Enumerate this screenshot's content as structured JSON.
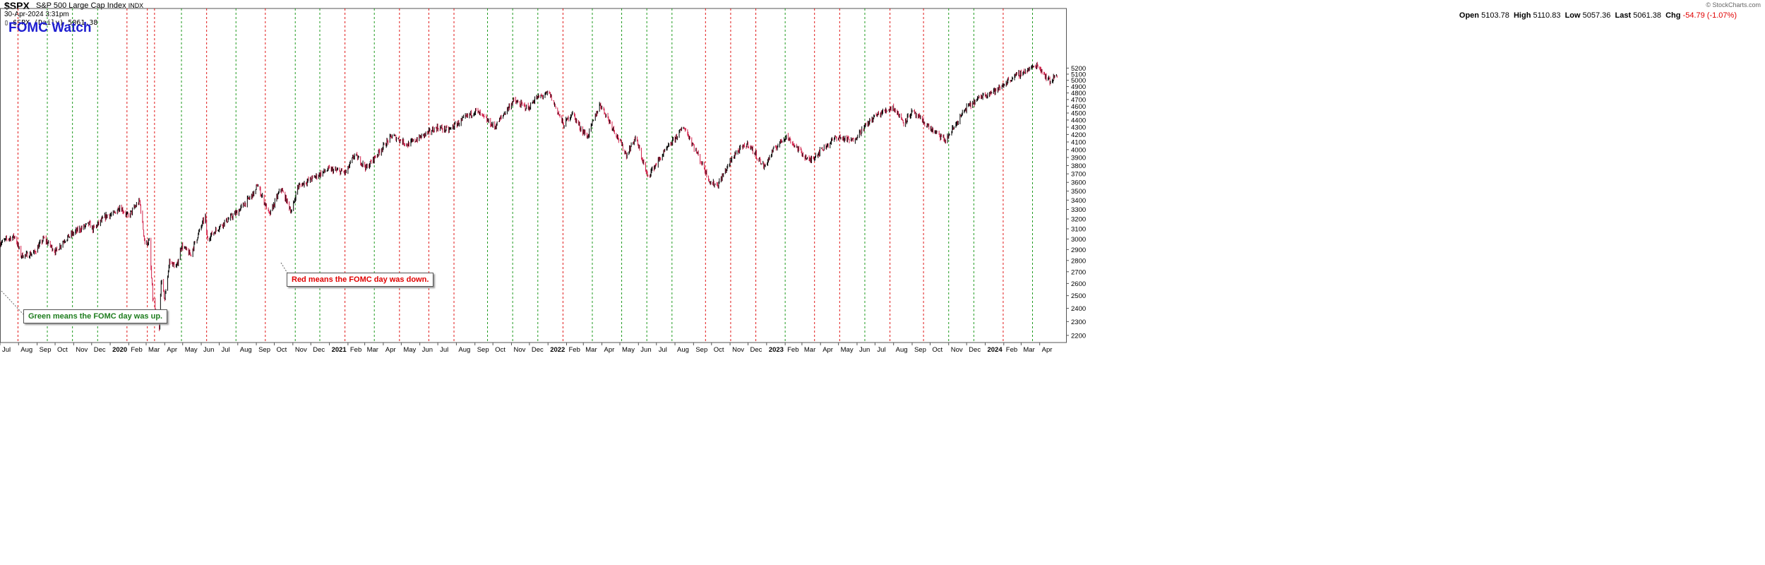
{
  "header": {
    "symbol": "$SPX",
    "description": "S&P 500 Large Cap Index",
    "exchange": "INDX",
    "timestamp": "30-Apr-2024 3:31pm",
    "legend": "▯ $SPX (Daily) 5061.38",
    "watermark": "© StockCharts.com",
    "open_label": "Open",
    "open": "5103.78",
    "high_label": "High",
    "high": "5110.83",
    "low_label": "Low",
    "low": "5057.36",
    "last_label": "Last",
    "last": "5061.38",
    "chg_label": "Chg",
    "chg": "-54.79 (-1.07%)",
    "chg_color": "#e00000"
  },
  "annotations": {
    "title": "FOMC Watch",
    "green_note": "Green means the FOMC day was up.",
    "red_note": "Red means the FOMC day was down."
  },
  "chart_data": {
    "type": "line",
    "title": "FOMC Watch",
    "scale": "log",
    "ylim": [
      2150,
      6300
    ],
    "y_ticks": [
      2200,
      2300,
      2400,
      2500,
      2600,
      2700,
      2800,
      2900,
      3000,
      3100,
      3200,
      3300,
      3400,
      3500,
      3600,
      3700,
      3800,
      3900,
      4000,
      4100,
      4200,
      4300,
      4400,
      4500,
      4600,
      4700,
      4800,
      4900,
      5000,
      5100,
      5200
    ],
    "x_range": [
      "2019-07-01",
      "2024-05-15"
    ],
    "x_ticks": [
      {
        "label": "Jul",
        "date": "2019-07-01"
      },
      {
        "label": "Aug",
        "date": "2019-08-01"
      },
      {
        "label": "Sep",
        "date": "2019-09-01"
      },
      {
        "label": "Oct",
        "date": "2019-10-01"
      },
      {
        "label": "Nov",
        "date": "2019-11-01"
      },
      {
        "label": "Dec",
        "date": "2019-12-01"
      },
      {
        "label": "2020",
        "date": "2020-01-01",
        "bold": true
      },
      {
        "label": "Feb",
        "date": "2020-02-01"
      },
      {
        "label": "Mar",
        "date": "2020-03-01"
      },
      {
        "label": "Apr",
        "date": "2020-04-01"
      },
      {
        "label": "May",
        "date": "2020-05-01"
      },
      {
        "label": "Jun",
        "date": "2020-06-01"
      },
      {
        "label": "Jul",
        "date": "2020-07-01"
      },
      {
        "label": "Aug",
        "date": "2020-08-01"
      },
      {
        "label": "Sep",
        "date": "2020-09-01"
      },
      {
        "label": "Oct",
        "date": "2020-10-01"
      },
      {
        "label": "Nov",
        "date": "2020-11-01"
      },
      {
        "label": "Dec",
        "date": "2020-12-01"
      },
      {
        "label": "2021",
        "date": "2021-01-01",
        "bold": true
      },
      {
        "label": "Feb",
        "date": "2021-02-01"
      },
      {
        "label": "Mar",
        "date": "2021-03-01"
      },
      {
        "label": "Apr",
        "date": "2021-04-01"
      },
      {
        "label": "May",
        "date": "2021-05-01"
      },
      {
        "label": "Jun",
        "date": "2021-06-01"
      },
      {
        "label": "Jul",
        "date": "2021-07-01"
      },
      {
        "label": "Aug",
        "date": "2021-08-01"
      },
      {
        "label": "Sep",
        "date": "2021-09-01"
      },
      {
        "label": "Oct",
        "date": "2021-10-01"
      },
      {
        "label": "Nov",
        "date": "2021-11-01"
      },
      {
        "label": "Dec",
        "date": "2021-12-01"
      },
      {
        "label": "2022",
        "date": "2022-01-01",
        "bold": true
      },
      {
        "label": "Feb",
        "date": "2022-02-01"
      },
      {
        "label": "Mar",
        "date": "2022-03-01"
      },
      {
        "label": "Apr",
        "date": "2022-04-01"
      },
      {
        "label": "May",
        "date": "2022-05-01"
      },
      {
        "label": "Jun",
        "date": "2022-06-01"
      },
      {
        "label": "Jul",
        "date": "2022-07-01"
      },
      {
        "label": "Aug",
        "date": "2022-08-01"
      },
      {
        "label": "Sep",
        "date": "2022-09-01"
      },
      {
        "label": "Oct",
        "date": "2022-10-01"
      },
      {
        "label": "Nov",
        "date": "2022-11-01"
      },
      {
        "label": "Dec",
        "date": "2022-12-01"
      },
      {
        "label": "2023",
        "date": "2023-01-01",
        "bold": true
      },
      {
        "label": "Feb",
        "date": "2023-02-01"
      },
      {
        "label": "Mar",
        "date": "2023-03-01"
      },
      {
        "label": "Apr",
        "date": "2023-04-01"
      },
      {
        "label": "May",
        "date": "2023-05-01"
      },
      {
        "label": "Jun",
        "date": "2023-06-01"
      },
      {
        "label": "Jul",
        "date": "2023-07-01"
      },
      {
        "label": "Aug",
        "date": "2023-08-01"
      },
      {
        "label": "Sep",
        "date": "2023-09-01"
      },
      {
        "label": "Oct",
        "date": "2023-10-01"
      },
      {
        "label": "Nov",
        "date": "2023-11-01"
      },
      {
        "label": "Dec",
        "date": "2023-12-01"
      },
      {
        "label": "2024",
        "date": "2024-01-01",
        "bold": true
      },
      {
        "label": "Feb",
        "date": "2024-02-01"
      },
      {
        "label": "Mar",
        "date": "2024-03-01"
      },
      {
        "label": "Apr",
        "date": "2024-04-01"
      }
    ],
    "fomc_days": [
      {
        "date": "2019-07-31",
        "result": "down"
      },
      {
        "date": "2019-09-18",
        "result": "up"
      },
      {
        "date": "2019-10-30",
        "result": "up"
      },
      {
        "date": "2019-12-11",
        "result": "up"
      },
      {
        "date": "2020-01-29",
        "result": "down"
      },
      {
        "date": "2020-03-03",
        "result": "down"
      },
      {
        "date": "2020-03-15",
        "result": "down"
      },
      {
        "date": "2020-04-29",
        "result": "up"
      },
      {
        "date": "2020-06-10",
        "result": "down"
      },
      {
        "date": "2020-07-29",
        "result": "up"
      },
      {
        "date": "2020-09-16",
        "result": "down"
      },
      {
        "date": "2020-11-05",
        "result": "up"
      },
      {
        "date": "2020-12-16",
        "result": "up"
      },
      {
        "date": "2021-01-27",
        "result": "down"
      },
      {
        "date": "2021-03-17",
        "result": "up"
      },
      {
        "date": "2021-04-28",
        "result": "down"
      },
      {
        "date": "2021-06-16",
        "result": "down"
      },
      {
        "date": "2021-07-28",
        "result": "down"
      },
      {
        "date": "2021-09-22",
        "result": "up"
      },
      {
        "date": "2021-11-03",
        "result": "up"
      },
      {
        "date": "2021-12-15",
        "result": "up"
      },
      {
        "date": "2022-01-26",
        "result": "down"
      },
      {
        "date": "2022-03-16",
        "result": "up"
      },
      {
        "date": "2022-05-04",
        "result": "up"
      },
      {
        "date": "2022-06-15",
        "result": "up"
      },
      {
        "date": "2022-07-27",
        "result": "up"
      },
      {
        "date": "2022-09-21",
        "result": "down"
      },
      {
        "date": "2022-11-02",
        "result": "down"
      },
      {
        "date": "2022-12-14",
        "result": "down"
      },
      {
        "date": "2023-02-01",
        "result": "up"
      },
      {
        "date": "2023-03-22",
        "result": "down"
      },
      {
        "date": "2023-05-03",
        "result": "down"
      },
      {
        "date": "2023-06-14",
        "result": "up"
      },
      {
        "date": "2023-07-26",
        "result": "down"
      },
      {
        "date": "2023-09-20",
        "result": "down"
      },
      {
        "date": "2023-11-01",
        "result": "up"
      },
      {
        "date": "2023-12-13",
        "result": "up"
      },
      {
        "date": "2024-01-31",
        "result": "down"
      },
      {
        "date": "2024-03-20",
        "result": "up"
      }
    ],
    "fomc_colors": {
      "up": "#1e9a1e",
      "down": "#e01818"
    },
    "price_colors": {
      "up": "#000000",
      "down": "#d1204a"
    },
    "series": [
      {
        "values": [
          [
            "2019-07-01",
            2960
          ],
          [
            "2019-07-15",
            3005
          ],
          [
            "2019-07-26",
            3025
          ],
          [
            "2019-08-05",
            2845
          ],
          [
            "2019-08-15",
            2850
          ],
          [
            "2019-08-27",
            2870
          ],
          [
            "2019-09-12",
            3005
          ],
          [
            "2019-10-02",
            2880
          ],
          [
            "2019-10-17",
            2995
          ],
          [
            "2019-11-05",
            3075
          ],
          [
            "2019-11-27",
            3150
          ],
          [
            "2019-12-03",
            3095
          ],
          [
            "2019-12-27",
            3240
          ],
          [
            "2020-01-06",
            3245
          ],
          [
            "2020-01-17",
            3330
          ],
          [
            "2020-01-31",
            3225
          ],
          [
            "2020-02-19",
            3390
          ],
          [
            "2020-02-28",
            2955
          ],
          [
            "2020-03-06",
            2975
          ],
          [
            "2020-03-12",
            2480
          ],
          [
            "2020-03-16",
            2385
          ],
          [
            "2020-03-23",
            2237
          ],
          [
            "2020-03-26",
            2630
          ],
          [
            "2020-04-01",
            2470
          ],
          [
            "2020-04-09",
            2790
          ],
          [
            "2020-04-21",
            2740
          ],
          [
            "2020-04-29",
            2940
          ],
          [
            "2020-05-14",
            2850
          ],
          [
            "2020-06-08",
            3230
          ],
          [
            "2020-06-11",
            3000
          ],
          [
            "2020-07-01",
            3120
          ],
          [
            "2020-07-31",
            3270
          ],
          [
            "2020-08-31",
            3500
          ],
          [
            "2020-09-02",
            3580
          ],
          [
            "2020-09-23",
            3240
          ],
          [
            "2020-10-12",
            3530
          ],
          [
            "2020-10-30",
            3270
          ],
          [
            "2020-11-09",
            3550
          ],
          [
            "2020-12-31",
            3756
          ],
          [
            "2021-01-29",
            3714
          ],
          [
            "2021-02-12",
            3935
          ],
          [
            "2021-03-04",
            3770
          ],
          [
            "2021-04-16",
            4185
          ],
          [
            "2021-05-12",
            4065
          ],
          [
            "2021-06-30",
            4297
          ],
          [
            "2021-07-19",
            4258
          ],
          [
            "2021-08-31",
            4523
          ],
          [
            "2021-09-02",
            4537
          ],
          [
            "2021-10-04",
            4300
          ],
          [
            "2021-11-04",
            4680
          ],
          [
            "2021-11-30",
            4567
          ],
          [
            "2021-12-10",
            4710
          ],
          [
            "2022-01-03",
            4796
          ],
          [
            "2022-01-27",
            4326
          ],
          [
            "2022-02-10",
            4504
          ],
          [
            "2022-02-24",
            4288
          ],
          [
            "2022-03-08",
            4170
          ],
          [
            "2022-03-29",
            4631
          ],
          [
            "2022-05-12",
            3930
          ],
          [
            "2022-05-27",
            4158
          ],
          [
            "2022-06-16",
            3666
          ],
          [
            "2022-07-08",
            3899
          ],
          [
            "2022-08-16",
            4305
          ],
          [
            "2022-09-30",
            3586
          ],
          [
            "2022-10-12",
            3577
          ],
          [
            "2022-11-10",
            3956
          ],
          [
            "2022-12-01",
            4076
          ],
          [
            "2022-12-28",
            3783
          ],
          [
            "2023-01-13",
            3999
          ],
          [
            "2023-02-02",
            4179
          ],
          [
            "2023-03-13",
            3855
          ],
          [
            "2023-04-28",
            4169
          ],
          [
            "2023-05-24",
            4115
          ],
          [
            "2023-06-30",
            4450
          ],
          [
            "2023-07-31",
            4589
          ],
          [
            "2023-08-18",
            4370
          ],
          [
            "2023-09-01",
            4515
          ],
          [
            "2023-10-04",
            4263
          ],
          [
            "2023-10-27",
            4117
          ],
          [
            "2023-11-30",
            4567
          ],
          [
            "2023-12-29",
            4770
          ],
          [
            "2024-01-22",
            4850
          ],
          [
            "2024-02-12",
            5021
          ],
          [
            "2024-03-28",
            5254
          ],
          [
            "2024-04-19",
            4967
          ],
          [
            "2024-04-29",
            5116
          ],
          [
            "2024-04-30",
            5061
          ]
        ]
      }
    ]
  }
}
